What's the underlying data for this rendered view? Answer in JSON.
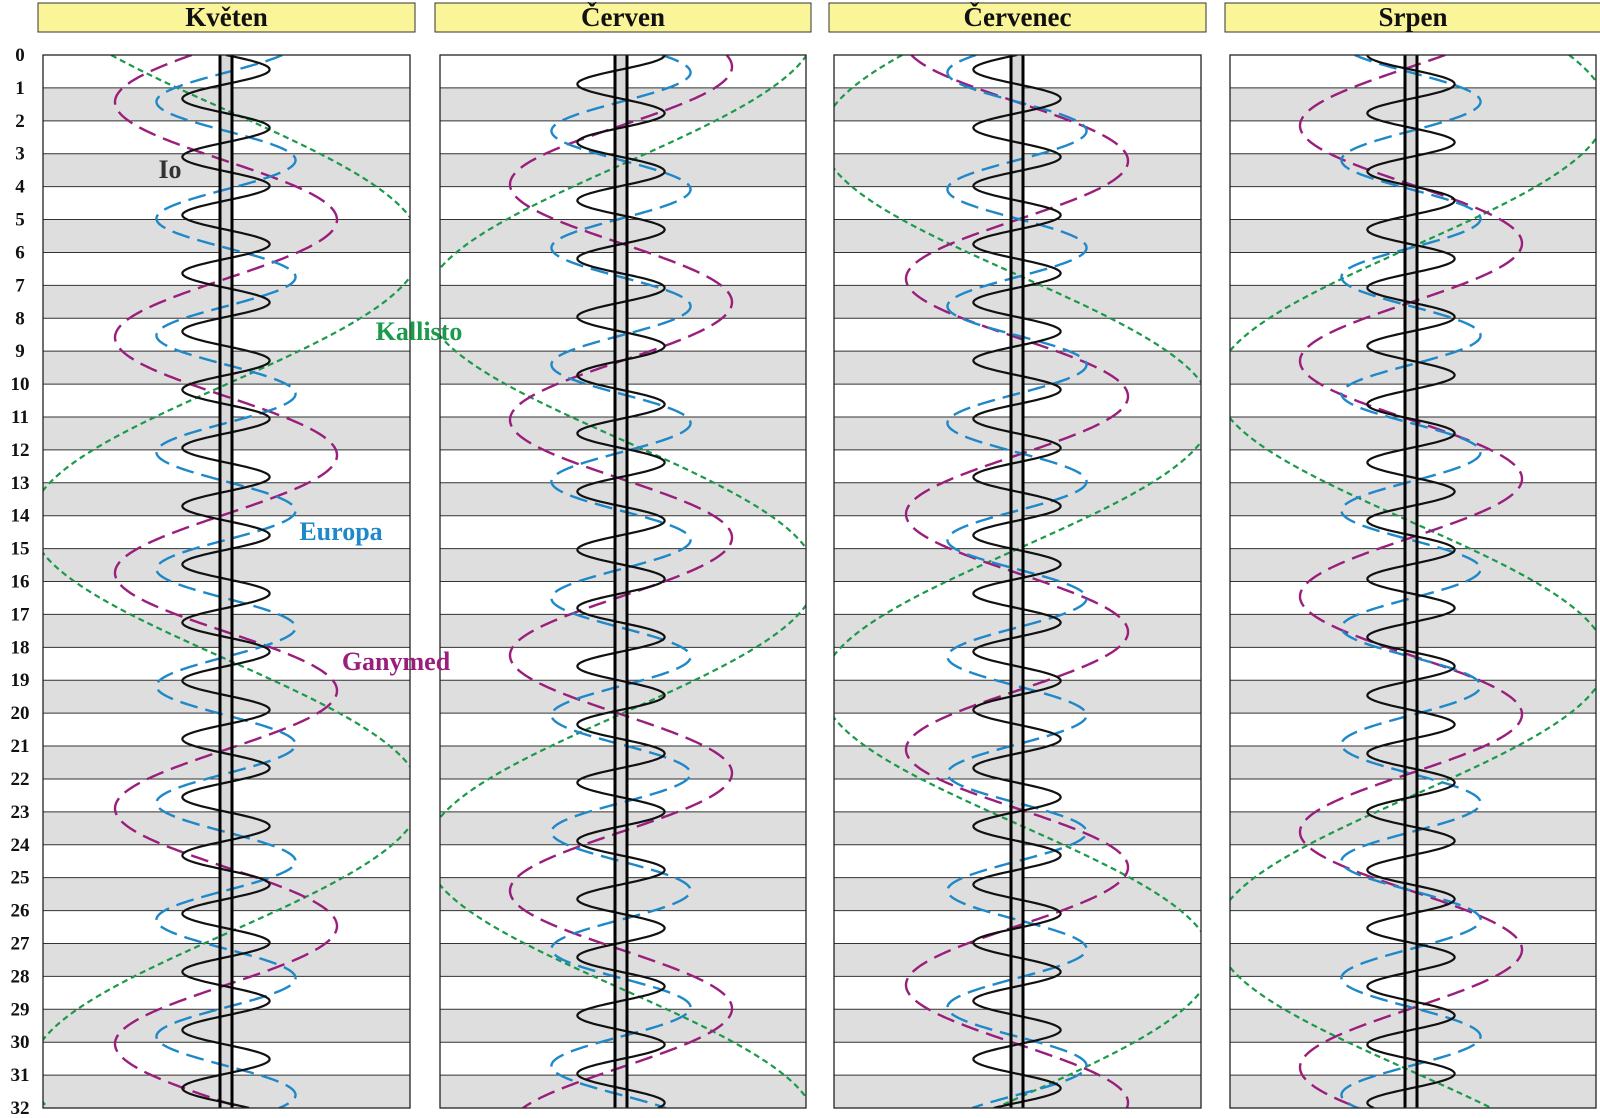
{
  "chart_data": {
    "type": "line",
    "title": "",
    "months": [
      {
        "name": "Květen",
        "phase": {
          "Io": 0.0,
          "Europa": 0.35,
          "Ganymed": 0.55,
          "Kallisto": 0.9
        }
      },
      {
        "name": "Červen",
        "phase": {
          "Io": 0.25,
          "Europa": 0.1,
          "Ganymed": 0.2,
          "Kallisto": 0.3
        }
      },
      {
        "name": "Červenec",
        "phase": {
          "Io": 0.5,
          "Europa": 0.6,
          "Ganymed": 0.8,
          "Kallisto": 0.6
        }
      },
      {
        "name": "Srpen",
        "phase": {
          "Io": 0.75,
          "Europa": 0.85,
          "Ganymed": 0.45,
          "Kallisto": 0.15
        }
      }
    ],
    "y_axis": {
      "ticks": [
        0,
        1,
        2,
        3,
        4,
        5,
        6,
        7,
        8,
        9,
        10,
        11,
        12,
        13,
        14,
        15,
        16,
        17,
        18,
        19,
        20,
        21,
        22,
        23,
        24,
        25,
        26,
        27,
        28,
        29,
        30,
        31,
        32
      ],
      "ylim": [
        0,
        32
      ],
      "inverted": true
    },
    "series": [
      {
        "name": "Io",
        "period_days": 1.769,
        "amplitude": 5.9,
        "color": "#111111",
        "style": "solid"
      },
      {
        "name": "Europa",
        "period_days": 3.551,
        "amplitude": 9.4,
        "color": "#1f88c8",
        "style": "dashed"
      },
      {
        "name": "Ganymed",
        "period_days": 7.155,
        "amplitude": 15.0,
        "color": "#9a1e7c",
        "style": "dashed"
      },
      {
        "name": "Kallisto",
        "period_days": 16.689,
        "amplitude": 26.4,
        "color": "#1a9a4a",
        "style": "dotted"
      }
    ],
    "planet_band_color": "#d9d9d9",
    "stripe_color": "#dedede",
    "header_color": "#fbf59a",
    "labels": [
      {
        "text": "Io",
        "series": "Io",
        "color": "#333333"
      },
      {
        "text": "Kallisto",
        "series": "Kallisto",
        "color": "#1a9a4a"
      },
      {
        "text": "Europa",
        "series": "Europa",
        "color": "#1f88c8"
      },
      {
        "text": "Ganymed",
        "series": "Ganymed",
        "color": "#9a1e7c"
      }
    ]
  }
}
